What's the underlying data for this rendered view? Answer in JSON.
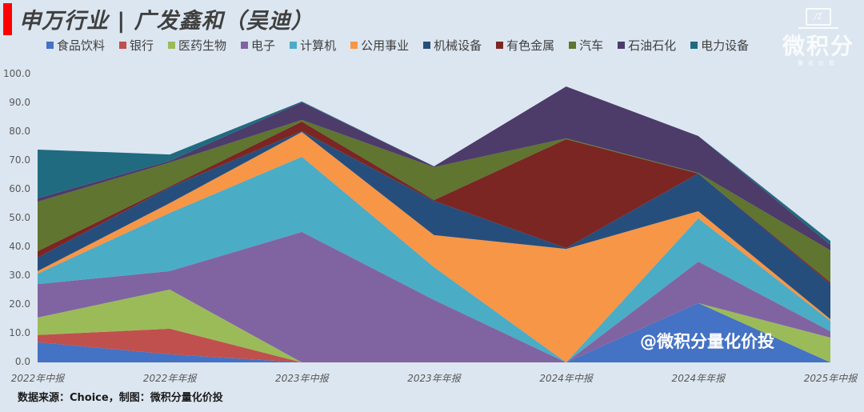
{
  "title": "申万行业 | 广发鑫和（吴迪）",
  "watermark": {
    "logo_box": "/Σ",
    "text": "微积分",
    "sub": "量化价投"
  },
  "overlay_watermark": "@微积分量化价投",
  "source": "数据来源：Choice，制图：微积分量化价投",
  "colors": {
    "background": "#dce6f0",
    "title_accent": "#ff0000"
  },
  "chart_data": {
    "type": "area",
    "stacked": true,
    "title": "申万行业 | 广发鑫和（吴迪）",
    "xlabel": "",
    "ylabel": "",
    "ylim": [
      0,
      100
    ],
    "yticks": [
      "0.0",
      "10.0",
      "20.0",
      "30.0",
      "40.0",
      "50.0",
      "60.0",
      "70.0",
      "80.0",
      "90.0",
      "100.0"
    ],
    "grid": false,
    "legend_position": "top",
    "categories": [
      "2022年中报",
      "2022年年报",
      "2023年中报",
      "2023年年报",
      "2024年中报",
      "2024年年报",
      "2025年中报"
    ],
    "series": [
      {
        "name": "食品饮料",
        "color": "#4472c4",
        "values": [
          7.0,
          2.8,
          0.0,
          0.0,
          0.0,
          20.6,
          0.0
        ]
      },
      {
        "name": "银行",
        "color": "#c0504d",
        "values": [
          2.5,
          8.9,
          0.0,
          0.0,
          0.0,
          0.0,
          0.0
        ]
      },
      {
        "name": "医药生物",
        "color": "#9bbb59",
        "values": [
          6.1,
          13.6,
          0.0,
          0.0,
          0.0,
          0.0,
          8.6
        ]
      },
      {
        "name": "电子",
        "color": "#8064a2",
        "values": [
          11.6,
          6.4,
          45.3,
          21.7,
          0.0,
          14.4,
          2.2
        ]
      },
      {
        "name": "计算机",
        "color": "#4bacc6",
        "values": [
          3.6,
          20.2,
          26.1,
          11.4,
          0.0,
          15.0,
          3.6
        ]
      },
      {
        "name": "公用事业",
        "color": "#f79646",
        "values": [
          0.9,
          3.4,
          8.6,
          11.1,
          39.4,
          2.5,
          0.6
        ]
      },
      {
        "name": "机械设备",
        "color": "#264e7c",
        "values": [
          4.7,
          5.5,
          0.3,
          11.9,
          0.3,
          13.1,
          12.2
        ]
      },
      {
        "name": "有色金属",
        "color": "#7b2623",
        "values": [
          2.2,
          0.3,
          3.3,
          0.3,
          37.8,
          0.0,
          0.6
        ]
      },
      {
        "name": "汽车",
        "color": "#5f7530",
        "values": [
          17.2,
          8.3,
          0.6,
          11.4,
          0.3,
          0.2,
          11.1
        ]
      },
      {
        "name": "石油石化",
        "color": "#4d3b6a",
        "values": [
          1.2,
          0.6,
          6.1,
          0.3,
          18.0,
          12.8,
          1.9
        ]
      },
      {
        "name": "电力设备",
        "color": "#206b80",
        "values": [
          16.9,
          2.2,
          0.3,
          0.0,
          0.0,
          0.0,
          1.4
        ]
      }
    ]
  }
}
